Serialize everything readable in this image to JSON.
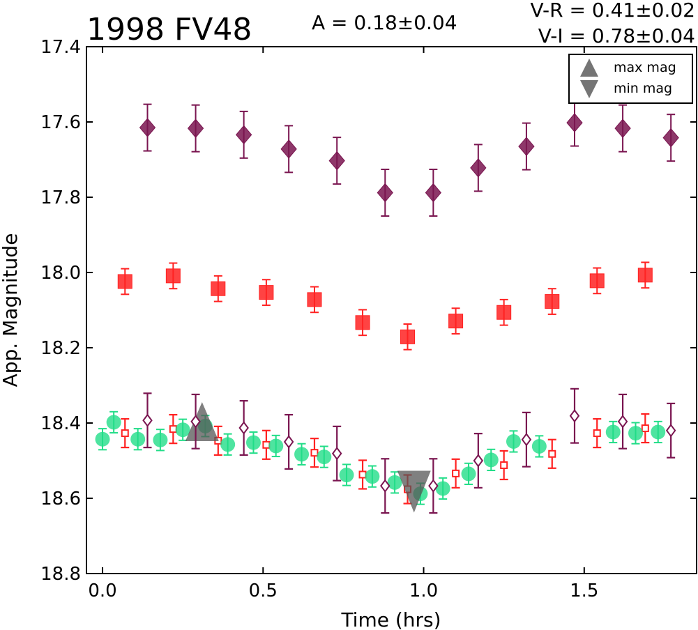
{
  "chart_data": {
    "type": "scatter",
    "title": "1998 FV48",
    "annotations": {
      "amplitude": "A  = 0.18±0.04",
      "color_vr": "V-R = 0.41±0.02",
      "color_vi": "V-I  = 0.78±0.04"
    },
    "xlabel": "Time (hrs)",
    "ylabel": "App. Magnitude",
    "xlim": [
      -0.05,
      1.85
    ],
    "ylim": [
      18.8,
      17.4
    ],
    "y_inverted": true,
    "xticks": [
      "0.0",
      "0.5",
      "1.0",
      "1.5"
    ],
    "yticks": [
      "17.4",
      "17.6",
      "17.8",
      "18.0",
      "18.2",
      "18.4",
      "18.6",
      "18.8"
    ],
    "legend": {
      "position": "top-right",
      "entries": [
        {
          "label": "max mag",
          "marker": "triangle-up",
          "color": "#666666"
        },
        {
          "label": "min mag",
          "marker": "triangle-down",
          "color": "#666666"
        }
      ]
    },
    "max_mag_marker": {
      "x": 0.31,
      "y": 18.4
    },
    "min_mag_marker": {
      "x": 0.97,
      "y": 18.575
    },
    "series": [
      {
        "marker": "diamond",
        "color": "#7a1550",
        "filled": true,
        "err": 0.062,
        "points": [
          [
            0.14,
            17.615
          ],
          [
            0.29,
            17.617
          ],
          [
            0.44,
            17.634
          ],
          [
            0.58,
            17.672
          ],
          [
            0.73,
            17.703
          ],
          [
            0.88,
            17.788
          ],
          [
            1.03,
            17.788
          ],
          [
            1.17,
            17.722
          ],
          [
            1.32,
            17.665
          ],
          [
            1.47,
            17.602
          ],
          [
            1.62,
            17.617
          ],
          [
            1.77,
            17.642
          ]
        ]
      },
      {
        "marker": "square",
        "color": "#ff2222",
        "filled": true,
        "err": 0.034,
        "points": [
          [
            0.07,
            18.024
          ],
          [
            0.22,
            18.009
          ],
          [
            0.36,
            18.043
          ],
          [
            0.51,
            18.053
          ],
          [
            0.66,
            18.072
          ],
          [
            0.81,
            18.133
          ],
          [
            0.95,
            18.171
          ],
          [
            1.1,
            18.129
          ],
          [
            1.25,
            18.106
          ],
          [
            1.4,
            18.077
          ],
          [
            1.54,
            18.022
          ],
          [
            1.69,
            18.007
          ]
        ]
      },
      {
        "marker": "circle",
        "color": "#22dd88",
        "filled": true,
        "err": 0.028,
        "points": [
          [
            0.0,
            18.443
          ],
          [
            0.035,
            18.398
          ],
          [
            0.11,
            18.443
          ],
          [
            0.18,
            18.445
          ],
          [
            0.25,
            18.418
          ],
          [
            0.32,
            18.408
          ],
          [
            0.39,
            18.457
          ],
          [
            0.47,
            18.452
          ],
          [
            0.54,
            18.461
          ],
          [
            0.62,
            18.483
          ],
          [
            0.69,
            18.49
          ],
          [
            0.76,
            18.538
          ],
          [
            0.84,
            18.542
          ],
          [
            0.91,
            18.558
          ],
          [
            0.99,
            18.588
          ],
          [
            1.06,
            18.574
          ],
          [
            1.14,
            18.535
          ],
          [
            1.21,
            18.498
          ],
          [
            1.28,
            18.449
          ],
          [
            1.36,
            18.462
          ],
          [
            1.59,
            18.424
          ],
          [
            1.66,
            18.427
          ],
          [
            1.73,
            18.424
          ]
        ]
      },
      {
        "marker": "square",
        "color": "#ff2222",
        "filled": false,
        "err": 0.038,
        "points": [
          [
            0.07,
            18.427
          ],
          [
            0.22,
            18.416
          ],
          [
            0.36,
            18.447
          ],
          [
            0.51,
            18.458
          ],
          [
            0.66,
            18.479
          ],
          [
            0.81,
            18.537
          ],
          [
            0.95,
            18.576
          ],
          [
            1.1,
            18.534
          ],
          [
            1.25,
            18.512
          ],
          [
            1.4,
            18.482
          ],
          [
            1.54,
            18.427
          ],
          [
            1.69,
            18.414
          ]
        ]
      },
      {
        "marker": "diamond",
        "color": "#7a1550",
        "filled": false,
        "err": 0.072,
        "points": [
          [
            0.14,
            18.393
          ],
          [
            0.29,
            18.396
          ],
          [
            0.44,
            18.413
          ],
          [
            0.58,
            18.45
          ],
          [
            0.73,
            18.481
          ],
          [
            0.88,
            18.567
          ],
          [
            1.03,
            18.567
          ],
          [
            1.17,
            18.5
          ],
          [
            1.32,
            18.444
          ],
          [
            1.47,
            18.381
          ],
          [
            1.62,
            18.396
          ],
          [
            1.77,
            18.42
          ]
        ]
      }
    ]
  }
}
